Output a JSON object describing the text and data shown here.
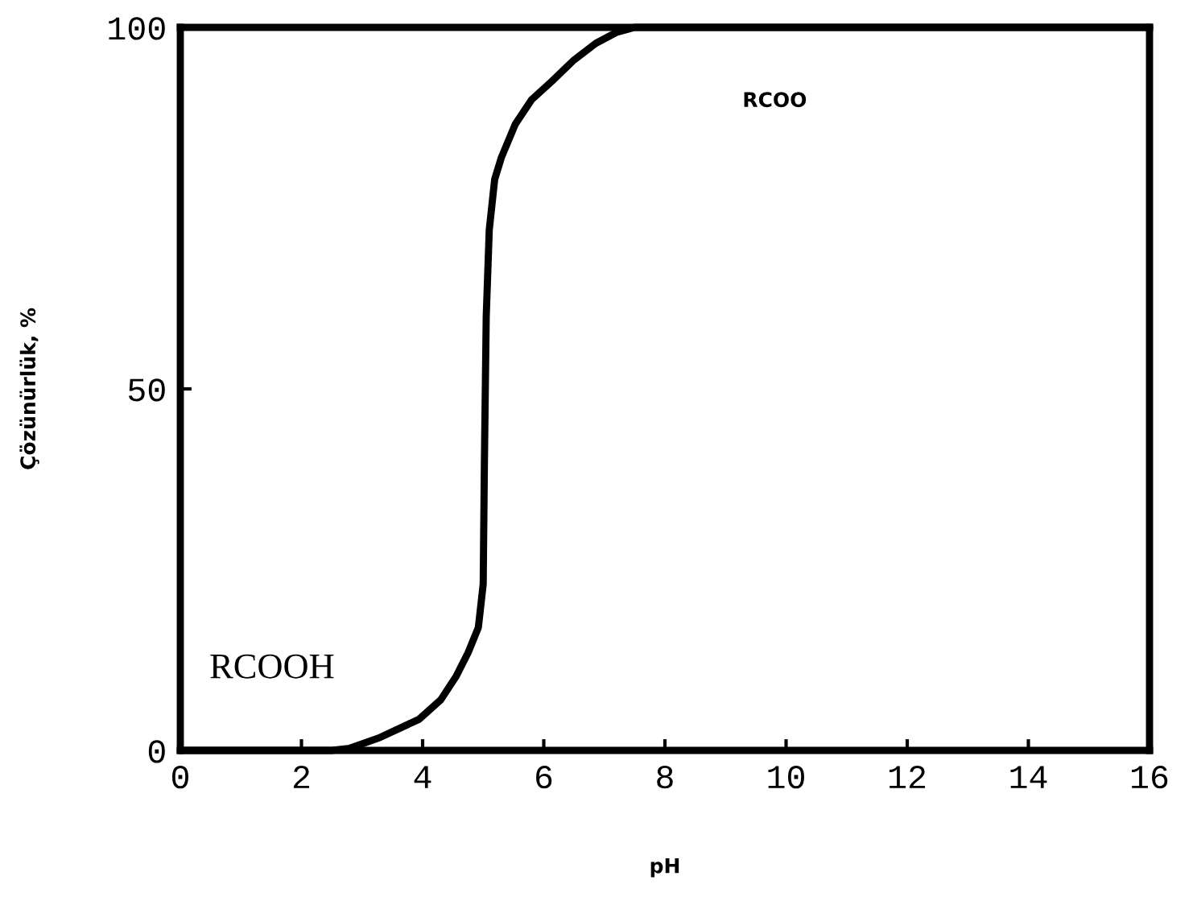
{
  "chart_data": {
    "type": "line",
    "xlabel": "pH",
    "ylabel": "Çözünürlük, %",
    "x": [
      0,
      1,
      2,
      2.5,
      2.8,
      3.3,
      3.94,
      4.3,
      4.55,
      4.75,
      4.92,
      5.0,
      5.02,
      5.05,
      5.1,
      5.19,
      5.3,
      5.53,
      5.8,
      6.14,
      6.5,
      6.86,
      7.2,
      7.5,
      8,
      10,
      12,
      14,
      16
    ],
    "series": [
      {
        "color": "#000000",
        "values": [
          0,
          0,
          0,
          0,
          0.3,
          1.8,
          4.3,
          7,
          10.2,
          13.5,
          17,
          23,
          40,
          60,
          72,
          79,
          82,
          86.6,
          90,
          92.6,
          95.5,
          97.8,
          99.3,
          100,
          100,
          100,
          100,
          100,
          100
        ]
      }
    ],
    "xlim": [
      0,
      16
    ],
    "ylim": [
      0,
      100
    ],
    "xticks": [
      0,
      2,
      4,
      6,
      8,
      10,
      12,
      14,
      16
    ],
    "yticks": [
      0,
      50,
      100
    ],
    "grid": false,
    "marker": "none",
    "line_style": "solid",
    "annotations": [
      "RCOOH",
      "RCOO"
    ]
  }
}
